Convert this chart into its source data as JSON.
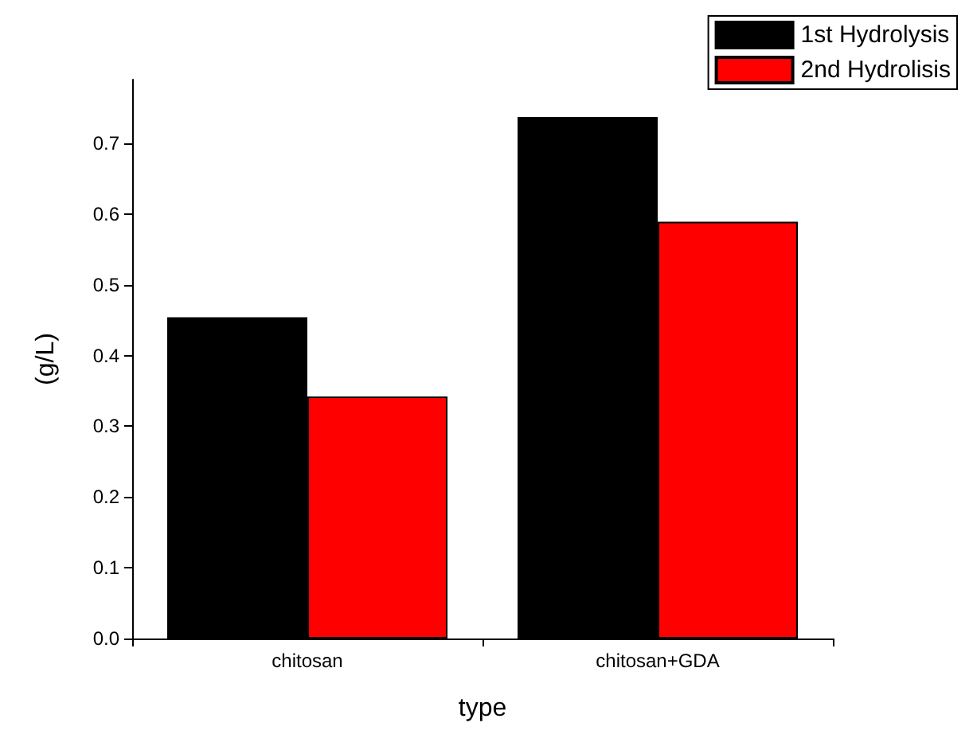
{
  "chart_data": {
    "type": "bar",
    "xlabel": "type",
    "ylabel": "(g/L)",
    "categories": [
      "chitosan",
      "chitosan+GDA"
    ],
    "series": [
      {
        "name": "1st Hydrolysis",
        "color": "#000000",
        "values": [
          0.454,
          0.737
        ]
      },
      {
        "name": "2nd Hydrolisis",
        "color": "#ff0000",
        "values": [
          0.342,
          0.589
        ]
      }
    ],
    "ylim": [
      0,
      0.79
    ],
    "yticks": [
      {
        "value": 0,
        "label": "0.0"
      },
      {
        "value": 0.1,
        "label": "0.1"
      },
      {
        "value": 0.2,
        "label": "0.2"
      },
      {
        "value": 0.3,
        "label": "0.3"
      },
      {
        "value": 0.4,
        "label": "0.4"
      },
      {
        "value": 0.5,
        "label": "0.5"
      },
      {
        "value": 0.6,
        "label": "0.6"
      },
      {
        "value": 0.7,
        "label": "0.7"
      }
    ],
    "grid": false,
    "legend": "top right"
  }
}
